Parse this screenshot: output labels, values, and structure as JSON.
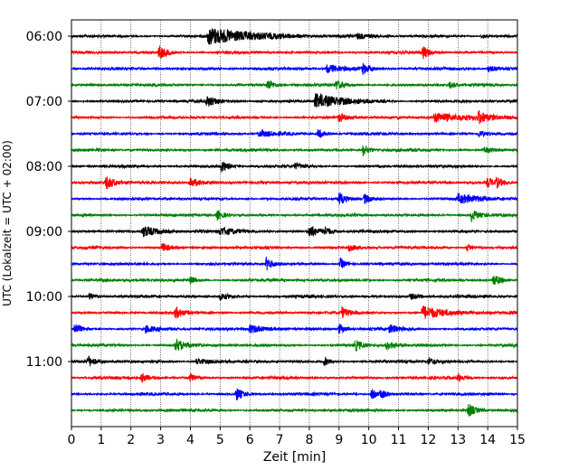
{
  "chart_data": {
    "type": "line",
    "title": "",
    "xlabel": "Zeit  [min]",
    "ylabel": "UTC (Lokalzeit = UTC + 02:00)",
    "xlim": [
      0,
      15
    ],
    "x_ticks": [
      "0",
      "1",
      "2",
      "3",
      "4",
      "5",
      "6",
      "7",
      "8",
      "9",
      "10",
      "11",
      "12",
      "13",
      "14",
      "15"
    ],
    "y_tick_labels": [
      "06:00",
      "07:00",
      "08:00",
      "09:00",
      "10:00",
      "11:00"
    ],
    "row_minutes": 15,
    "grid_x": true,
    "legend": "none",
    "row_colors": [
      "#000000",
      "#ff0000",
      "#0000ff",
      "#008000"
    ],
    "rows": [
      {
        "time": "06:00",
        "events": [
          {
            "x": 4.6,
            "amp": 1.0,
            "dur": 1.6
          },
          {
            "x": 9.6,
            "amp": 0.3,
            "dur": 0.3
          },
          {
            "x": 13.8,
            "amp": 0.25,
            "dur": 0.2
          }
        ]
      },
      {
        "time": "06:15",
        "events": [
          {
            "x": 2.95,
            "amp": 0.9,
            "dur": 0.25
          },
          {
            "x": 11.8,
            "amp": 0.9,
            "dur": 0.2
          }
        ]
      },
      {
        "time": "06:30",
        "events": [
          {
            "x": 8.6,
            "amp": 0.5,
            "dur": 0.6
          },
          {
            "x": 9.8,
            "amp": 0.6,
            "dur": 0.2
          },
          {
            "x": 14.0,
            "amp": 0.35,
            "dur": 0.4
          }
        ]
      },
      {
        "time": "06:45",
        "events": [
          {
            "x": 6.6,
            "amp": 0.7,
            "dur": 0.2
          },
          {
            "x": 8.9,
            "amp": 0.6,
            "dur": 0.25
          },
          {
            "x": 12.7,
            "amp": 0.4,
            "dur": 0.2
          }
        ]
      },
      {
        "time": "07:00",
        "events": [
          {
            "x": 4.55,
            "amp": 0.6,
            "dur": 0.4
          },
          {
            "x": 8.2,
            "amp": 0.9,
            "dur": 0.9
          },
          {
            "x": 15.0,
            "amp": 0.5,
            "dur": 0.1
          }
        ]
      },
      {
        "time": "07:15",
        "events": [
          {
            "x": 9.0,
            "amp": 0.5,
            "dur": 0.2
          },
          {
            "x": 12.2,
            "amp": 0.6,
            "dur": 1.2
          },
          {
            "x": 13.7,
            "amp": 0.7,
            "dur": 0.2
          }
        ]
      },
      {
        "time": "07:30",
        "events": [
          {
            "x": 6.3,
            "amp": 0.4,
            "dur": 0.7
          },
          {
            "x": 8.3,
            "amp": 0.6,
            "dur": 0.2
          },
          {
            "x": 13.7,
            "amp": 0.4,
            "dur": 0.3
          }
        ]
      },
      {
        "time": "07:45",
        "events": [
          {
            "x": 9.8,
            "amp": 0.7,
            "dur": 0.2
          },
          {
            "x": 13.9,
            "amp": 0.4,
            "dur": 0.2
          }
        ]
      },
      {
        "time": "08:00",
        "events": [
          {
            "x": 5.05,
            "amp": 0.7,
            "dur": 0.2
          },
          {
            "x": 7.5,
            "amp": 0.3,
            "dur": 0.3
          }
        ]
      },
      {
        "time": "08:15",
        "events": [
          {
            "x": 1.15,
            "amp": 0.8,
            "dur": 0.3
          },
          {
            "x": 4.0,
            "amp": 0.5,
            "dur": 0.5
          },
          {
            "x": 14.0,
            "amp": 0.6,
            "dur": 0.2
          },
          {
            "x": 14.3,
            "amp": 0.5,
            "dur": 0.2
          }
        ]
      },
      {
        "time": "08:30",
        "events": [
          {
            "x": 9.0,
            "amp": 0.8,
            "dur": 0.2
          },
          {
            "x": 9.85,
            "amp": 0.6,
            "dur": 0.2
          },
          {
            "x": 13.0,
            "amp": 0.5,
            "dur": 0.8
          }
        ]
      },
      {
        "time": "08:45",
        "events": [
          {
            "x": 4.9,
            "amp": 0.6,
            "dur": 0.2
          },
          {
            "x": 13.45,
            "amp": 0.8,
            "dur": 0.2
          }
        ]
      },
      {
        "time": "09:00",
        "events": [
          {
            "x": 2.4,
            "amp": 0.7,
            "dur": 0.5
          },
          {
            "x": 8.0,
            "amp": 0.8,
            "dur": 0.3
          },
          {
            "x": 8.5,
            "amp": 0.5,
            "dur": 0.2
          },
          {
            "x": 5.0,
            "amp": 0.4,
            "dur": 0.6
          }
        ]
      },
      {
        "time": "09:15",
        "events": [
          {
            "x": 3.05,
            "amp": 0.6,
            "dur": 0.2
          },
          {
            "x": 9.3,
            "amp": 0.5,
            "dur": 0.2
          },
          {
            "x": 13.3,
            "amp": 0.5,
            "dur": 0.2
          }
        ]
      },
      {
        "time": "09:30",
        "events": [
          {
            "x": 6.55,
            "amp": 0.8,
            "dur": 0.2
          },
          {
            "x": 9.05,
            "amp": 0.7,
            "dur": 0.2
          }
        ]
      },
      {
        "time": "09:45",
        "events": [
          {
            "x": 4.0,
            "amp": 0.4,
            "dur": 0.2
          },
          {
            "x": 14.2,
            "amp": 0.8,
            "dur": 0.2
          }
        ]
      },
      {
        "time": "10:00",
        "events": [
          {
            "x": 0.6,
            "amp": 0.5,
            "dur": 0.2
          },
          {
            "x": 5.0,
            "amp": 0.4,
            "dur": 0.3
          },
          {
            "x": 11.4,
            "amp": 0.4,
            "dur": 0.3
          }
        ]
      },
      {
        "time": "10:15",
        "events": [
          {
            "x": 3.5,
            "amp": 0.7,
            "dur": 0.2
          },
          {
            "x": 9.1,
            "amp": 0.6,
            "dur": 0.2
          },
          {
            "x": 11.8,
            "amp": 0.8,
            "dur": 0.8
          }
        ]
      },
      {
        "time": "10:30",
        "events": [
          {
            "x": 0.1,
            "amp": 0.7,
            "dur": 0.2
          },
          {
            "x": 6.0,
            "amp": 0.5,
            "dur": 0.6
          },
          {
            "x": 9.0,
            "amp": 0.6,
            "dur": 0.2
          },
          {
            "x": 10.7,
            "amp": 0.5,
            "dur": 0.3
          },
          {
            "x": 2.5,
            "amp": 0.4,
            "dur": 0.4
          }
        ]
      },
      {
        "time": "10:45",
        "events": [
          {
            "x": 3.5,
            "amp": 0.8,
            "dur": 0.3
          },
          {
            "x": 9.55,
            "amp": 0.7,
            "dur": 0.2
          },
          {
            "x": 10.6,
            "amp": 0.5,
            "dur": 0.3
          }
        ]
      },
      {
        "time": "11:00",
        "events": [
          {
            "x": 0.55,
            "amp": 0.7,
            "dur": 0.2
          },
          {
            "x": 8.5,
            "amp": 0.5,
            "dur": 0.2
          },
          {
            "x": 4.2,
            "amp": 0.4,
            "dur": 0.4
          },
          {
            "x": 12.0,
            "amp": 0.4,
            "dur": 0.3
          }
        ]
      },
      {
        "time": "11:15",
        "events": [
          {
            "x": 2.35,
            "amp": 0.6,
            "dur": 0.2
          },
          {
            "x": 4.0,
            "amp": 0.5,
            "dur": 0.2
          },
          {
            "x": 13.0,
            "amp": 0.5,
            "dur": 0.2
          }
        ]
      },
      {
        "time": "11:30",
        "events": [
          {
            "x": 5.55,
            "amp": 0.8,
            "dur": 0.2
          },
          {
            "x": 10.1,
            "amp": 0.6,
            "dur": 0.2
          },
          {
            "x": 10.4,
            "amp": 0.5,
            "dur": 0.2
          }
        ]
      },
      {
        "time": "11:45",
        "events": [
          {
            "x": 13.35,
            "amp": 0.9,
            "dur": 0.2
          }
        ]
      }
    ]
  }
}
